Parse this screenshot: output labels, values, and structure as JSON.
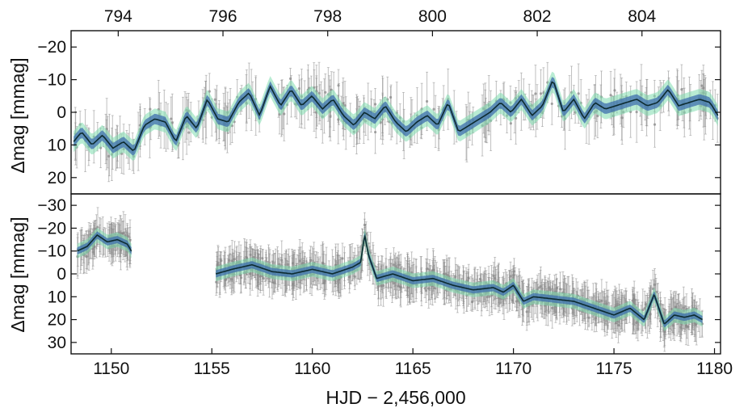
{
  "chart_data": {
    "type": "line",
    "description_type": "photometric light curves with error-bar points and model credible bands",
    "colors": {
      "points": "#8a8a8a",
      "model_line": "#0d2b2f",
      "band_inner": "#3f6fae",
      "band_outer": "#7fdcae"
    },
    "panels": [
      {
        "id": "top",
        "ylabel": "Δmag [mmag]",
        "y_inverted": true,
        "ylim": [
          -25,
          25
        ],
        "yticks": [
          -20,
          -10,
          0,
          10,
          20
        ],
        "ytick_labels": [
          "−20",
          "−10",
          "0",
          "10",
          "20"
        ],
        "top_xaxis": {
          "label": "",
          "ticks": [
            794,
            796,
            798,
            800,
            802,
            804
          ],
          "tick_labels": [
            "794",
            "796",
            "798",
            "800",
            "802",
            "804"
          ]
        },
        "x_range": [
          793.1,
          805.5
        ],
        "model_curve": {
          "x": [
            793.15,
            793.3,
            793.5,
            793.7,
            793.9,
            794.1,
            794.3,
            794.5,
            794.7,
            794.9,
            795.1,
            795.3,
            795.5,
            795.7,
            795.9,
            796.1,
            796.3,
            796.5,
            796.7,
            796.9,
            797.1,
            797.3,
            797.5,
            797.7,
            797.9,
            798.1,
            798.3,
            798.5,
            798.7,
            798.9,
            799.1,
            799.3,
            799.5,
            799.7,
            799.9,
            800.1,
            800.3,
            800.5,
            800.7,
            800.9,
            801.1,
            801.3,
            801.5,
            801.7,
            801.9,
            802.1,
            802.3,
            802.5,
            802.7,
            802.9,
            803.1,
            803.3,
            803.5,
            803.7,
            803.9,
            804.1,
            804.3,
            804.5,
            804.7,
            804.9,
            805.1,
            805.3,
            805.45
          ],
          "y": [
            9,
            6,
            10,
            7,
            11,
            9,
            12,
            4,
            2,
            3,
            9,
            1,
            5,
            -4,
            2,
            3,
            -3,
            -6,
            1,
            -8,
            -2,
            -7,
            -2,
            -5,
            -1,
            -4,
            1,
            4,
            0,
            2,
            -2,
            3,
            6,
            3,
            1,
            4,
            -3,
            6,
            4,
            2,
            0,
            -3,
            0,
            -4,
            1,
            -2,
            -10,
            0,
            -4,
            2,
            -3,
            -1,
            -2,
            -3,
            -4,
            -2,
            -3,
            -7,
            -2,
            -3,
            -4,
            -3,
            1
          ]
        },
        "points": {
          "count": 340,
          "typical_error_mmag": 6
        }
      },
      {
        "id": "bottom",
        "ylabel": "Δmag [mmag]",
        "xlabel": "HJD − 2,456,000",
        "y_inverted": true,
        "ylim": [
          -35,
          35
        ],
        "yticks": [
          -30,
          -20,
          -10,
          0,
          10,
          20,
          30
        ],
        "ytick_labels": [
          "−30",
          "−20",
          "−10",
          "0",
          "10",
          "20",
          "30"
        ],
        "xlim": [
          1148,
          1180.3
        ],
        "xticks": [
          1150,
          1155,
          1160,
          1165,
          1170,
          1175,
          1180
        ],
        "xtick_labels": [
          "1150",
          "1155",
          "1160",
          "1165",
          "1170",
          "1175",
          "1180"
        ],
        "model_curve": {
          "x": [
            1148.3,
            1148.8,
            1149.3,
            1149.8,
            1150.3,
            1150.8,
            1151.0,
            null,
            1155.2,
            1156.0,
            1157.0,
            1158.0,
            1159.0,
            1160.0,
            1161.0,
            1162.0,
            1162.4,
            1162.6,
            1162.8,
            1163.2,
            1164.0,
            1165.0,
            1166.0,
            1167.0,
            1168.0,
            1169.0,
            1169.5,
            1170.0,
            1170.5,
            1171.0,
            1172.0,
            1173.0,
            1174.0,
            1175.0,
            1175.8,
            1176.5,
            1177.0,
            1177.5,
            1178.0,
            1178.5,
            1179.0,
            1179.4
          ],
          "y": [
            -10,
            -12,
            -17,
            -14,
            -15,
            -13,
            -10,
            null,
            0,
            -2,
            -4,
            -1,
            0,
            -2,
            0,
            -3,
            -5,
            -17,
            -8,
            2,
            0,
            3,
            2,
            5,
            7,
            6,
            8,
            5,
            12,
            10,
            11,
            12,
            15,
            18,
            15,
            20,
            9,
            22,
            18,
            19,
            18,
            20
          ]
        },
        "points": {
          "count": 1100,
          "typical_error_mmag": 6
        }
      }
    ]
  }
}
